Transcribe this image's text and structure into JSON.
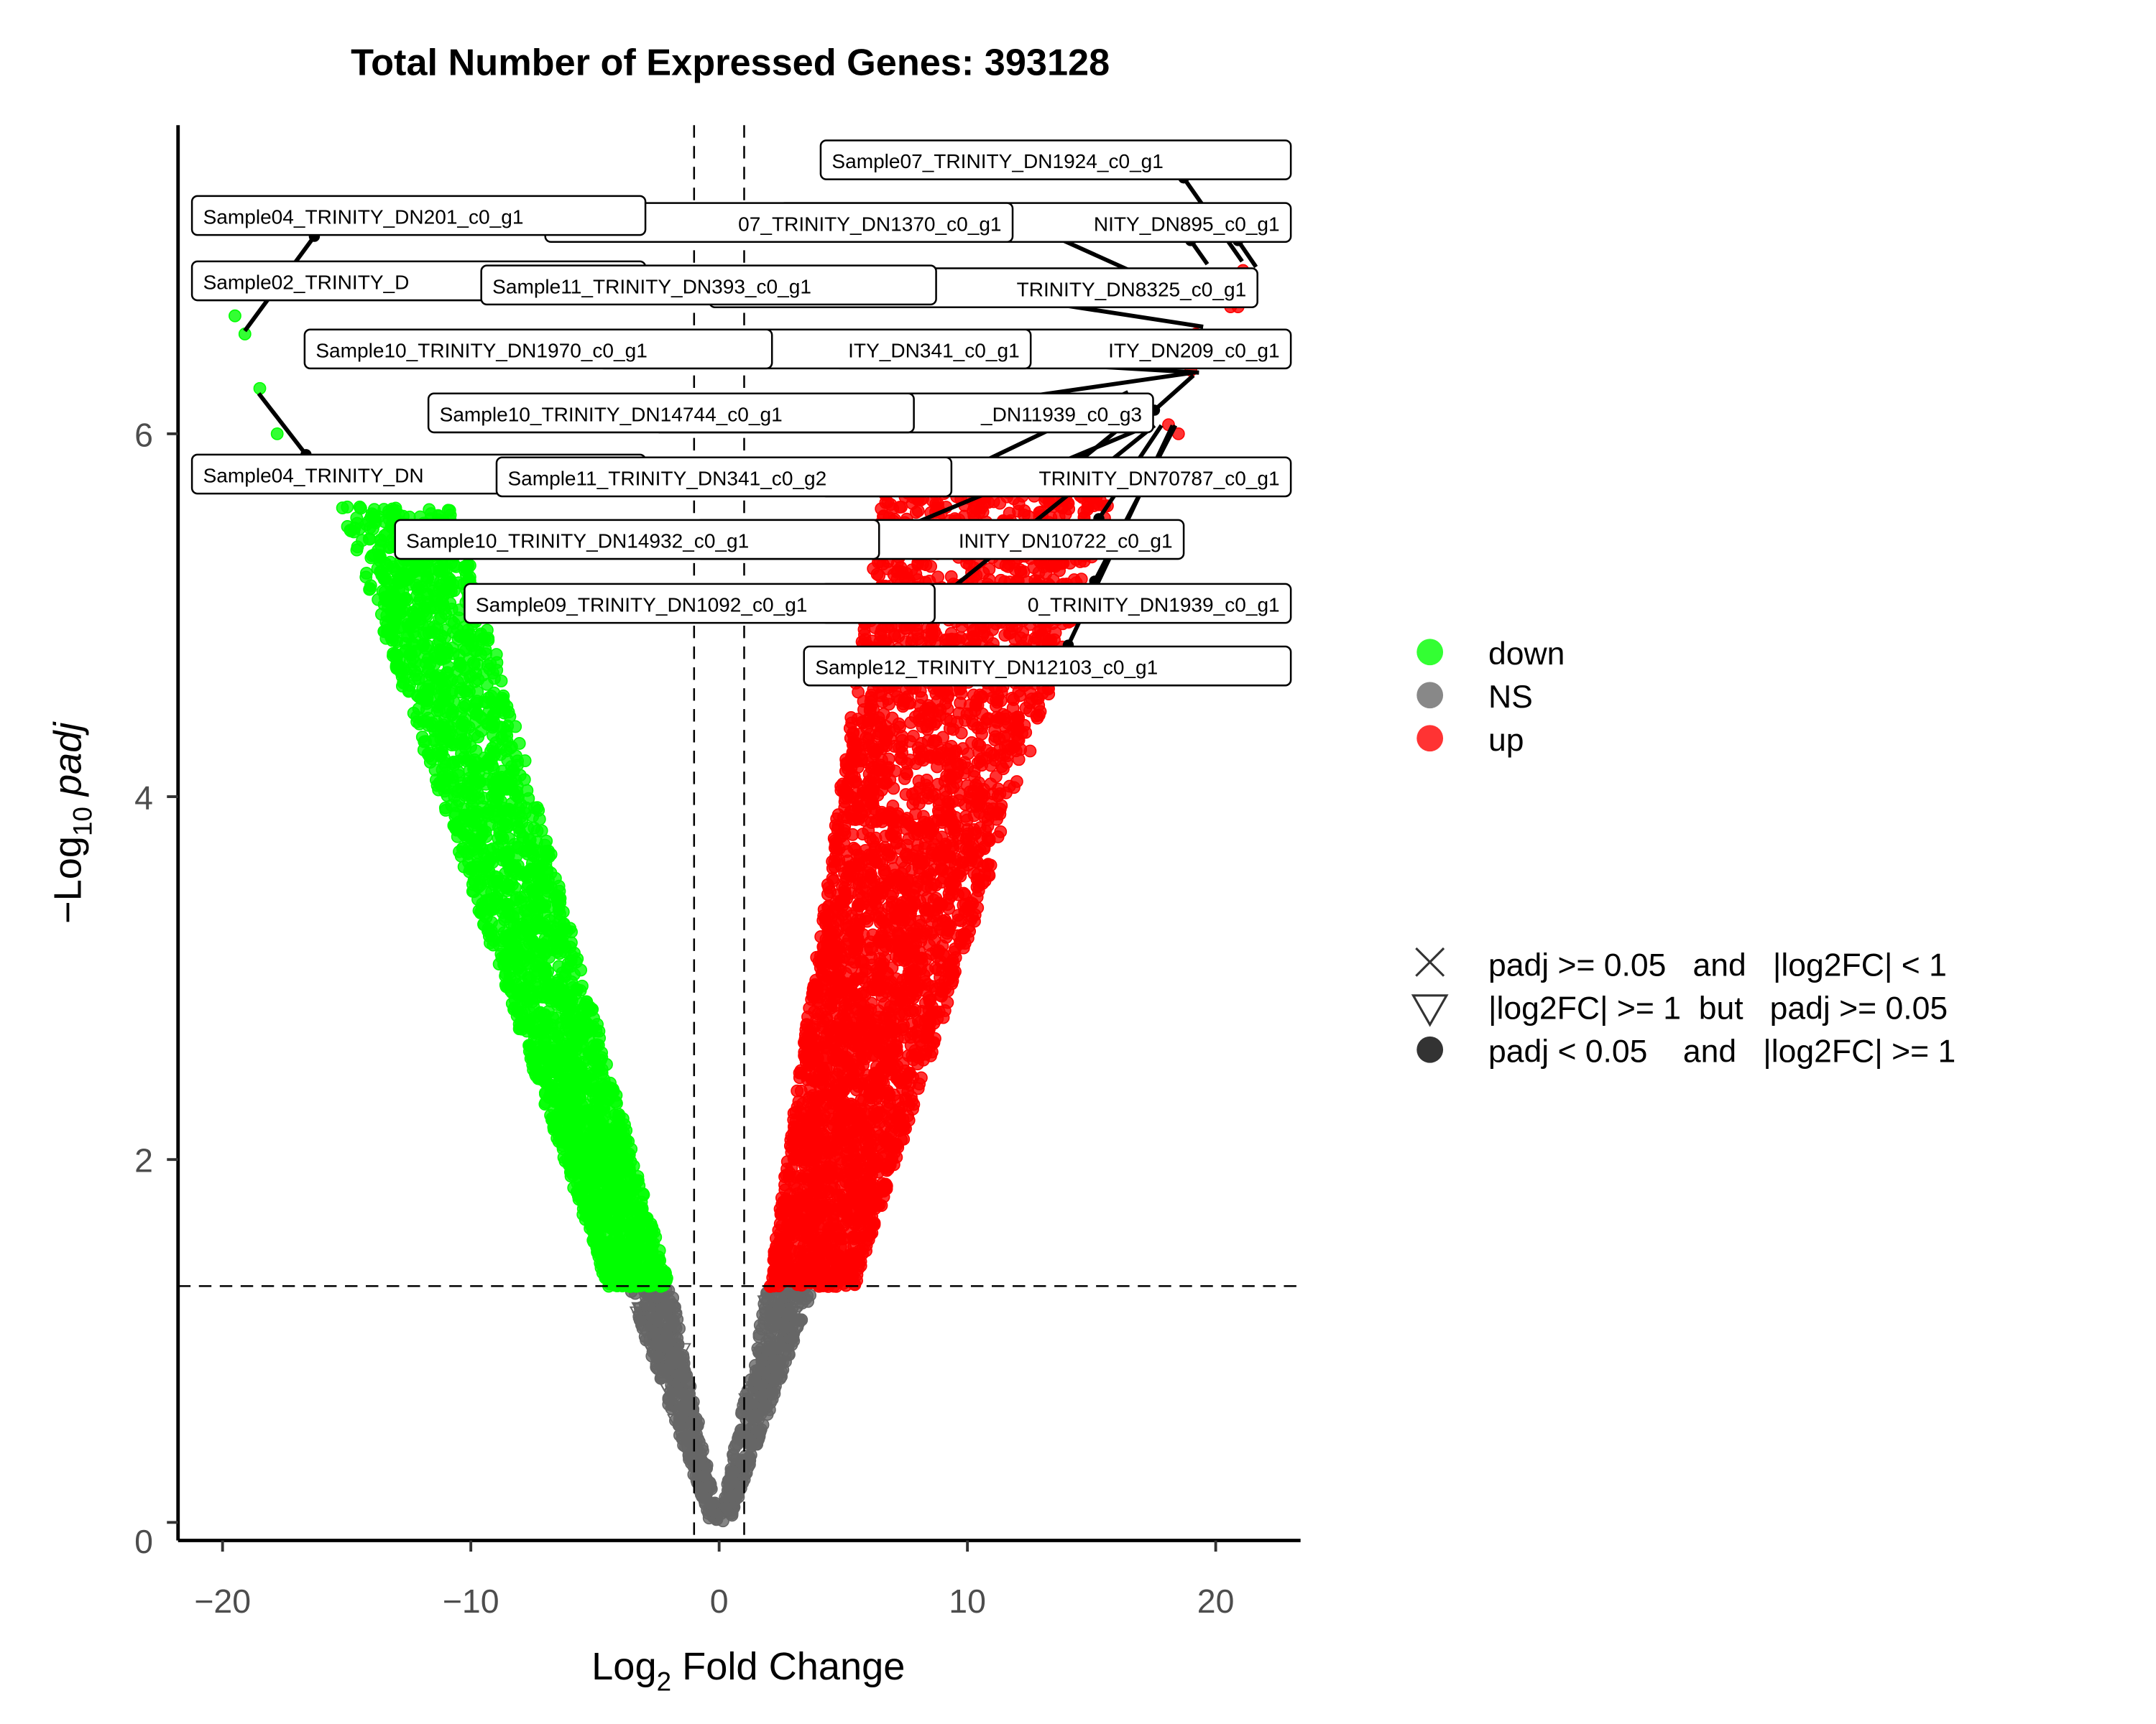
{
  "chart_data": {
    "type": "scatter",
    "title": "Total Number of Expressed Genes: 393128",
    "xlabel": {
      "base": "Log",
      "sub": "2",
      "rest": " Fold Change"
    },
    "ylabel": {
      "prefix": "−Log",
      "sub": "10",
      "rest": " padj"
    },
    "xlim": [
      -21.5,
      23.5
    ],
    "ylim": [
      -0.1,
      7.8
    ],
    "xticks": [
      -20,
      -10,
      0,
      10,
      20
    ],
    "xtick_labels": [
      "−20",
      "−10",
      "0",
      "10",
      "20"
    ],
    "yticks": [
      0,
      2,
      4,
      6
    ],
    "ytick_labels": [
      "0",
      "2",
      "4",
      "6"
    ],
    "grid": false,
    "thresholds": {
      "log2fc": [
        -1,
        1
      ],
      "neg_log10_padj": 1.301
    },
    "colors": {
      "down": "#00ff00",
      "NS": "#666666",
      "up": "#ff0000"
    },
    "legend_color": {
      "placement": "right",
      "entries": [
        {
          "label": "down",
          "color": "#33ff33"
        },
        {
          "label": "NS",
          "color": "#888888"
        },
        {
          "label": "up",
          "color": "#ff3333"
        }
      ]
    },
    "legend_shape": {
      "placement": "right",
      "entries": [
        {
          "shape": "cross",
          "label": "padj >= 0.05   and   |log2FC| < 1"
        },
        {
          "shape": "triangle-down",
          "label": "|log2FC| >= 1  but   padj >= 0.05"
        },
        {
          "shape": "circle",
          "label": "padj < 0.05    and   |log2FC| >= 1"
        }
      ]
    },
    "series": [
      {
        "name": "down",
        "x_range": [
          -19.5,
          -2
        ],
        "y_range": [
          1.3,
          6.65
        ],
        "envelope": {
          "outer_x_at_y1.3": -4.5,
          "inner_x_at_y1.3": -2,
          "outer_slope": 0.4,
          "inner_slope": 0.5
        }
      },
      {
        "name": "up",
        "x_range": [
          2,
          21.2
        ],
        "y_range": [
          1.3,
          6.9
        ],
        "envelope": {
          "inner_x_at_y1.3": 2,
          "outer_x_at_y1.3": 5.5,
          "inner_slope": 0.95,
          "outer_slope": 0.42
        }
      },
      {
        "name": "NS",
        "x_range": [
          -4.5,
          4.8
        ],
        "y_range": [
          0,
          1.3
        ]
      }
    ],
    "outliers": [
      {
        "x": -19.5,
        "y": 6.65,
        "group": "down"
      },
      {
        "x": -19.1,
        "y": 6.55,
        "group": "down"
      },
      {
        "x": -18.5,
        "y": 6.25,
        "group": "down"
      },
      {
        "x": -17.8,
        "y": 6.0,
        "group": "down"
      },
      {
        "x": 21.1,
        "y": 6.9,
        "group": "up"
      },
      {
        "x": 20.6,
        "y": 6.7,
        "group": "up"
      },
      {
        "x": 20.9,
        "y": 6.7,
        "group": "up"
      },
      {
        "x": 19.2,
        "y": 6.55,
        "group": "up"
      },
      {
        "x": 19.0,
        "y": 6.35,
        "group": "up"
      },
      {
        "x": 18.1,
        "y": 6.05,
        "group": "up"
      },
      {
        "x": 18.5,
        "y": 6.0,
        "group": "up"
      },
      {
        "x": 16.8,
        "y": 6.1,
        "group": "up"
      }
    ],
    "labels": [
      "Sample07_TRINITY_DN1924_c0_g1",
      "Sample04_TRINITY_DN201_c0_g1",
      "07_TRINITY_DN1370_c0_g1",
      "NITY_DN895_c0_g1",
      "Sample02_TRINITY_D",
      "TRINITY_DN8325_c0_g1",
      "Sample11_TRINITY_DN393_c0_g1",
      "ITY_DN209_c0_g1",
      "ITY_DN341_c0_g1",
      "Sample10_TRINITY_DN1970_c0_g1",
      "_DN11939_c0_g3",
      "Sample10_TRINITY_DN14744_c0_g1",
      "Sample04_TRINITY_DN",
      "TRINITY_DN70787_c0_g1",
      "Sample11_TRINITY_DN341_c0_g2",
      "INITY_DN10722_c0_g1",
      "Sample10_TRINITY_DN14932_c0_g1",
      "0_TRINITY_DN1939_c0_g1",
      "Sample09_TRINITY_DN1092_c0_g1",
      "Sample12_TRINITY_DN12103_c0_g1"
    ]
  }
}
